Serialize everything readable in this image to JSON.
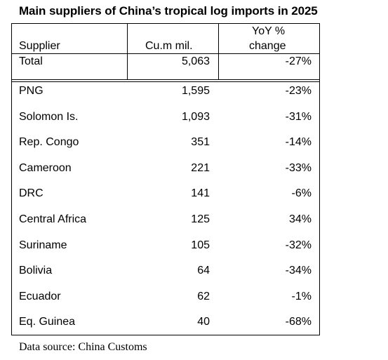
{
  "title": "Main suppliers of China’s tropical log imports in 2025",
  "table": {
    "headers": {
      "supplier": "Supplier",
      "volume": "Cu.m mil.",
      "yoy_line1": "YoY %",
      "yoy_line2": "change"
    },
    "total": {
      "supplier": "Total",
      "volume": "5,063",
      "change": "-27%"
    },
    "rows": [
      {
        "supplier": "PNG",
        "volume": "1,595",
        "change": "-23%"
      },
      {
        "supplier": "Solomon Is.",
        "volume": "1,093",
        "change": "-31%"
      },
      {
        "supplier": "Rep. Congo",
        "volume": "351",
        "change": "-14%"
      },
      {
        "supplier": "Cameroon",
        "volume": "221",
        "change": "-33%"
      },
      {
        "supplier": "DRC",
        "volume": "141",
        "change": "-6%"
      },
      {
        "supplier": "Central Africa",
        "volume": "125",
        "change": "34%"
      },
      {
        "supplier": "Suriname",
        "volume": "105",
        "change": "-32%"
      },
      {
        "supplier": "Bolivia",
        "volume": "64",
        "change": "-34%"
      },
      {
        "supplier": "Ecuador",
        "volume": "62",
        "change": "-1%"
      },
      {
        "supplier": "Eq. Guinea",
        "volume": "40",
        "change": "-68%"
      }
    ]
  },
  "source": "Data source: China Customs"
}
